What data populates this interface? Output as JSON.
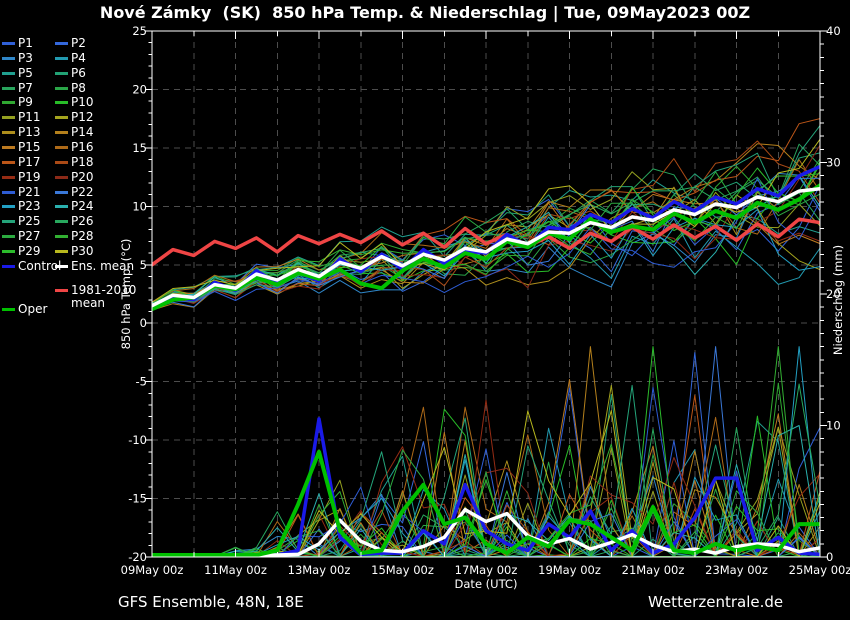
{
  "title": "Nové Zámky  (SK)  850 hPa Temp. & Niederschlag | Tue, 09May2023 00Z",
  "footer": {
    "left": "GFS Ensemble, 48N, 18E",
    "right": "Wetterzentrale.de"
  },
  "legend": {
    "member_labels": [
      "P1",
      "P2",
      "P3",
      "P4",
      "P5",
      "P6",
      "P7",
      "P8",
      "P9",
      "P10",
      "P11",
      "P12",
      "P13",
      "P14",
      "P15",
      "P16",
      "P17",
      "P18",
      "P19",
      "P20",
      "P21",
      "P22",
      "P23",
      "P24",
      "P25",
      "P26",
      "P27",
      "P28",
      "P29",
      "P30"
    ],
    "control": {
      "label": "Control",
      "color": "#1a1ae8"
    },
    "ens_mean": {
      "label": "Ens. mean",
      "color": "#ffffff"
    },
    "climate": {
      "label_line1": "1981-2010",
      "label_line2": "mean",
      "color": "#ef4545"
    },
    "oper": {
      "label": "Oper",
      "color": "#00c000"
    }
  },
  "chart_data": {
    "type": "line",
    "x_axis": {
      "label": "Date (UTC)",
      "range_hours": [
        0,
        384
      ],
      "step_hours": 12,
      "tick_hours": [
        0,
        48,
        96,
        144,
        192,
        240,
        288,
        336,
        384
      ],
      "tick_labels": [
        "09May 00z",
        "11May 00z",
        "13May 00z",
        "15May 00z",
        "17May 00z",
        "19May 00z",
        "21May 00z",
        "23May 00z",
        "25May 00z"
      ],
      "minor_step_hours": 24
    },
    "y_left": {
      "label": "850 hPa Temp. (°C)",
      "range": [
        -20,
        25
      ],
      "major_ticks": [
        25,
        20,
        15,
        10,
        5,
        0,
        -5,
        -10,
        -15,
        -20
      ],
      "minor_step": 1,
      "grid_step": 5
    },
    "y_right": {
      "label": "Niederschlag (mm)",
      "range": [
        0,
        40
      ],
      "major_ticks": [
        40,
        30,
        20,
        10,
        0
      ],
      "minor_step": 1
    },
    "grid": {
      "color": "#4d4d4d",
      "dash": "6,5",
      "vertical_every_hours": 24
    },
    "series": [
      {
        "name": "1981-2010 mean",
        "color": "#ef4545",
        "width": 3.5,
        "temp": [
          5.0,
          6.3,
          5.8,
          7.0,
          6.4,
          7.3,
          6.1,
          7.5,
          6.8,
          7.6,
          6.9,
          7.9,
          6.7,
          7.7,
          6.5,
          8.1,
          6.8,
          7.6,
          6.6,
          7.4,
          6.4,
          7.7,
          7.0,
          8.2,
          7.2,
          8.4,
          7.3,
          8.3,
          7.1,
          8.5,
          7.4,
          8.9,
          8.6
        ]
      },
      {
        "name": "Control",
        "color": "#1a1ae8",
        "width": 3.5,
        "temp": [
          1.3,
          2.2,
          2.0,
          3.5,
          2.8,
          4.5,
          3.4,
          4.3,
          3.6,
          5.5,
          4.4,
          5.9,
          4.6,
          6.3,
          5.1,
          6.2,
          6.0,
          7.6,
          6.6,
          8.2,
          8.0,
          9.3,
          8.6,
          9.8,
          9.0,
          10.4,
          9.6,
          10.8,
          10.2,
          11.5,
          10.9,
          12.6,
          13.4
        ],
        "precip": [
          0,
          0,
          0,
          0,
          0,
          0,
          0,
          0.5,
          10.5,
          1.5,
          0.2,
          0.3,
          0.3,
          2.0,
          1.0,
          5.5,
          2.0,
          1.0,
          0.5,
          2.5,
          1.5,
          3.5,
          0.5,
          2.0,
          0.3,
          1.0,
          3.0,
          6.0,
          6.0,
          0.5,
          1.5,
          0.3,
          0.2
        ]
      },
      {
        "name": "Oper",
        "color": "#00c000",
        "width": 4,
        "temp": [
          1.2,
          2.0,
          2.2,
          3.2,
          2.9,
          3.9,
          3.3,
          4.3,
          3.8,
          4.6,
          3.4,
          3.0,
          4.5,
          5.5,
          4.8,
          6.0,
          5.5,
          7.0,
          6.5,
          7.7,
          7.2,
          8.9,
          7.8,
          8.3,
          8.0,
          9.4,
          8.6,
          9.6,
          9.0,
          10.3,
          9.7,
          10.6,
          11.8
        ],
        "precip": [
          0,
          0,
          0,
          0,
          0,
          0,
          0.5,
          4.0,
          8.0,
          2.0,
          0.3,
          0.5,
          3.5,
          5.5,
          2.5,
          3.0,
          1.0,
          0.3,
          1.5,
          0.8,
          2.8,
          2.5,
          1.5,
          0.5,
          3.8,
          0.5,
          0.3,
          1.0,
          0.5,
          0.8,
          0.5,
          2.5,
          2.5
        ]
      },
      {
        "name": "Ens. mean",
        "color": "#ffffff",
        "width": 3.5,
        "temp": [
          1.5,
          2.4,
          2.2,
          3.3,
          3.0,
          4.2,
          3.7,
          4.6,
          4.0,
          5.2,
          4.7,
          5.7,
          4.9,
          5.9,
          5.4,
          6.4,
          6.1,
          7.2,
          6.8,
          7.8,
          7.7,
          8.6,
          8.2,
          9.1,
          8.8,
          9.7,
          9.3,
          10.2,
          9.9,
          10.8,
          10.4,
          11.3,
          11.5
        ],
        "precip": [
          0,
          0,
          0,
          0,
          0,
          0,
          0,
          0.2,
          1.0,
          2.8,
          1.2,
          0.5,
          0.4,
          0.8,
          1.5,
          3.6,
          2.7,
          3.3,
          1.6,
          1.0,
          1.4,
          0.6,
          1.1,
          1.7,
          0.9,
          0.4,
          0.6,
          0.3,
          0.8,
          1.0,
          0.9,
          0.4,
          0.7
        ]
      }
    ],
    "members": {
      "count": 30,
      "seed": 13,
      "line_width": 1,
      "temp_spread_start": 0.35,
      "temp_spread_end": 3.1,
      "precip_max": 16,
      "colors": [
        "#3060d8",
        "#3468dc",
        "#2f86c8",
        "#229ab0",
        "#20a090",
        "#22a275",
        "#28a45c",
        "#2aa648",
        "#30a832",
        "#28bc28",
        "#94a020",
        "#a4a41e",
        "#ae8e1c",
        "#b4801c",
        "#bc7a20",
        "#ae6a18",
        "#bc5618",
        "#aa4a16",
        "#962c14",
        "#8c2a18",
        "#2e5cd4",
        "#3a78d8",
        "#22a0c4",
        "#2ab0ae",
        "#24a47a",
        "#28a85e",
        "#2caa40",
        "#32b032",
        "#2cbc2c",
        "#b8b81e"
      ]
    }
  }
}
